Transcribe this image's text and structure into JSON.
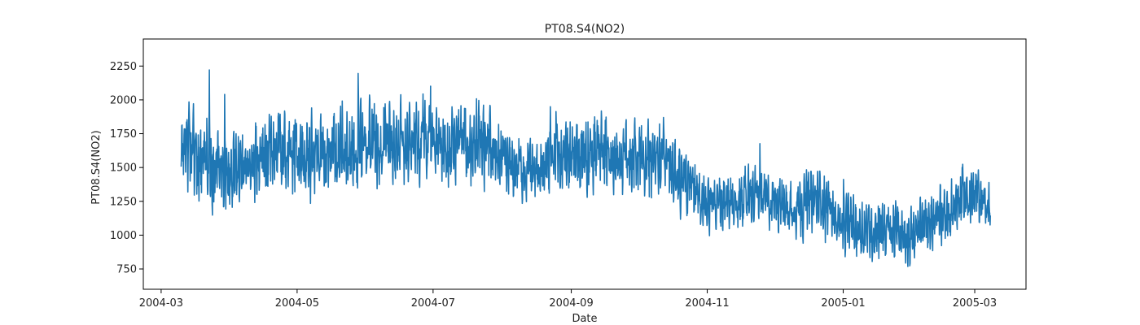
{
  "chart_data": {
    "type": "line",
    "title": "PT08.S4(NO2)",
    "xlabel": "Date",
    "ylabel": "PT08.S4(NO2)",
    "x_start": "2004-03-10",
    "x_end": "2005-03-08",
    "xlim": [
      "2004-02-22",
      "2005-03-24"
    ],
    "ylim": [
      600,
      2450
    ],
    "x_ticks": [
      "2004-03",
      "2004-05",
      "2004-07",
      "2004-09",
      "2004-11",
      "2005-01",
      "2005-03"
    ],
    "y_ticks": [
      750,
      1000,
      1250,
      1500,
      1750,
      2000,
      2250
    ],
    "grid": false,
    "series": [
      {
        "color": "#1f77b4",
        "x": [
          "2004-03-10",
          "2004-03-17",
          "2004-03-24",
          "2004-03-31",
          "2004-04-07",
          "2004-04-14",
          "2004-04-21",
          "2004-04-28",
          "2004-05-05",
          "2004-05-12",
          "2004-05-19",
          "2004-05-26",
          "2004-06-02",
          "2004-06-09",
          "2004-06-16",
          "2004-06-23",
          "2004-06-30",
          "2004-07-07",
          "2004-07-14",
          "2004-07-21",
          "2004-07-28",
          "2004-08-04",
          "2004-08-11",
          "2004-08-18",
          "2004-08-25",
          "2004-09-01",
          "2004-09-08",
          "2004-09-15",
          "2004-09-22",
          "2004-09-29",
          "2004-10-06",
          "2004-10-13",
          "2004-10-20",
          "2004-10-27",
          "2004-11-03",
          "2004-11-10",
          "2004-11-17",
          "2004-11-24",
          "2004-12-01",
          "2004-12-08",
          "2004-12-15",
          "2004-12-22",
          "2004-12-29",
          "2005-01-05",
          "2005-01-12",
          "2005-01-19",
          "2005-01-26",
          "2005-02-02",
          "2005-02-09",
          "2005-02-16",
          "2005-02-23",
          "2005-03-02",
          "2005-03-08"
        ],
        "y": [
          1600,
          1560,
          1520,
          1480,
          1540,
          1600,
          1600,
          1570,
          1560,
          1610,
          1640,
          1630,
          1700,
          1680,
          1650,
          1720,
          1690,
          1650,
          1660,
          1700,
          1630,
          1560,
          1490,
          1480,
          1560,
          1600,
          1540,
          1600,
          1560,
          1580,
          1520,
          1600,
          1420,
          1300,
          1240,
          1220,
          1230,
          1300,
          1230,
          1200,
          1250,
          1260,
          1120,
          1060,
          1040,
          1060,
          1020,
          980,
          1080,
          1170,
          1280,
          1300,
          1200
        ],
        "band": [
          380,
          450,
          480,
          400,
          420,
          430,
          460,
          430,
          440,
          420,
          440,
          450,
          460,
          420,
          430,
          420,
          430,
          420,
          400,
          400,
          380,
          360,
          350,
          330,
          360,
          370,
          420,
          430,
          380,
          400,
          380,
          400,
          360,
          300,
          280,
          300,
          320,
          290,
          270,
          300,
          320,
          280,
          300,
          320,
          300,
          330,
          320,
          330,
          300,
          360,
          330,
          290,
          250
        ]
      }
    ]
  }
}
